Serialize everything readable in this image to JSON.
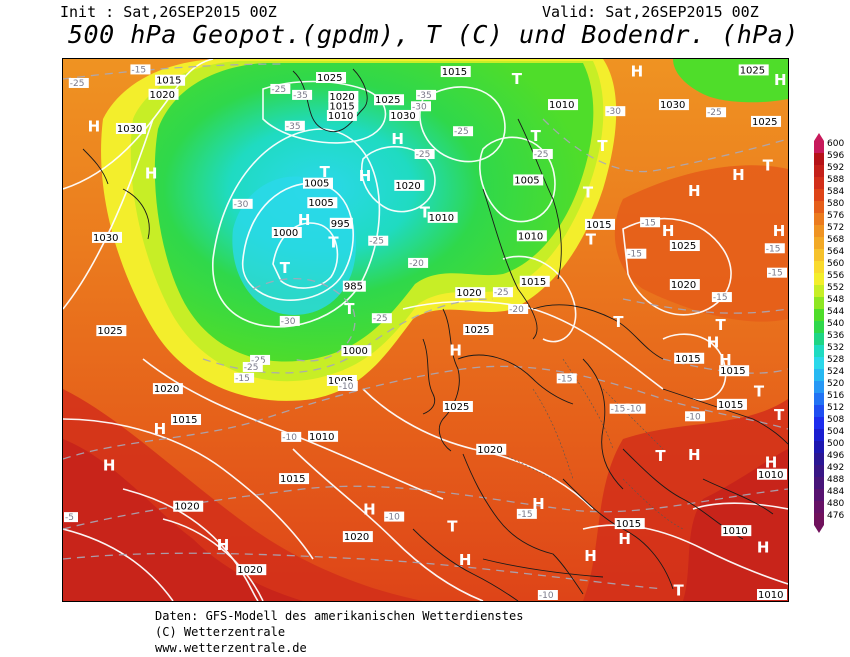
{
  "header": {
    "init": "Init : Sat,26SEP2015 00Z",
    "valid": "Valid: Sat,26SEP2015 00Z",
    "title": "500 hPa Geopot.(gpdm), T (C) und Bodendr. (hPa)"
  },
  "footer": {
    "line1": "Daten: GFS-Modell des amerikanischen Wetterdienstes",
    "line2": "(C) Wetterzentrale",
    "line3": "www.wetterzentrale.de"
  },
  "legend": {
    "levels": [
      "600",
      "596",
      "592",
      "588",
      "584",
      "580",
      "576",
      "572",
      "568",
      "564",
      "560",
      "556",
      "552",
      "548",
      "544",
      "540",
      "536",
      "532",
      "528",
      "524",
      "520",
      "516",
      "512",
      "508",
      "504",
      "500",
      "496",
      "492",
      "488",
      "484",
      "480",
      "476"
    ],
    "colors": [
      "#c71a5b",
      "#b51218",
      "#c4201a",
      "#d22f1a",
      "#de4418",
      "#e55e1a",
      "#eb7b1e",
      "#ef9322",
      "#f2a926",
      "#f6c22c",
      "#f9da2e",
      "#f3ee2c",
      "#c7ee26",
      "#8ee622",
      "#4fdd2a",
      "#2fd84b",
      "#1fd585",
      "#1fdbc1",
      "#2bd8ea",
      "#27b9f2",
      "#2798f5",
      "#2273f4",
      "#1f4ef1",
      "#1d2dee",
      "#1a1ed0",
      "#1d17b0",
      "#2a1694",
      "#381585",
      "#471479",
      "#571270",
      "#661166",
      "#70115c"
    ]
  },
  "map": {
    "pressure_labels": [
      {
        "t": "1015",
        "x": 12.7,
        "y": 2.9
      },
      {
        "t": "1020",
        "x": 11.8,
        "y": 5.5
      },
      {
        "t": "1030",
        "x": 7.3,
        "y": 11.8
      },
      {
        "t": "1025",
        "x": 34.9,
        "y": 2.4
      },
      {
        "t": "1020",
        "x": 36.6,
        "y": 5.9
      },
      {
        "t": "1015",
        "x": 36.6,
        "y": 7.7
      },
      {
        "t": "1010",
        "x": 36.4,
        "y": 9.4
      },
      {
        "t": "1025",
        "x": 42.9,
        "y": 6.5
      },
      {
        "t": "1030",
        "x": 45.0,
        "y": 9.4
      },
      {
        "t": "1015",
        "x": 52.1,
        "y": 1.3
      },
      {
        "t": "1010",
        "x": 66.9,
        "y": 7.4
      },
      {
        "t": "1030",
        "x": 82.2,
        "y": 7.4
      },
      {
        "t": "1025",
        "x": 93.2,
        "y": 1.0
      },
      {
        "t": "1025",
        "x": 94.9,
        "y": 10.5
      },
      {
        "t": "1020",
        "x": 45.7,
        "y": 22.3
      },
      {
        "t": "1005",
        "x": 33.1,
        "y": 21.9
      },
      {
        "t": "1005",
        "x": 33.7,
        "y": 25.5
      },
      {
        "t": "995",
        "x": 36.8,
        "y": 29.3
      },
      {
        "t": "1000",
        "x": 28.8,
        "y": 31.0
      },
      {
        "t": "1010",
        "x": 50.3,
        "y": 28.2
      },
      {
        "t": "1005",
        "x": 62.1,
        "y": 21.3
      },
      {
        "t": "1010",
        "x": 62.6,
        "y": 31.6
      },
      {
        "t": "1015",
        "x": 72.0,
        "y": 29.5
      },
      {
        "t": "1015",
        "x": 63.0,
        "y": 40.0
      },
      {
        "t": "1020",
        "x": 54.1,
        "y": 42.1
      },
      {
        "t": "1030",
        "x": 4.0,
        "y": 31.9
      },
      {
        "t": "1025",
        "x": 4.6,
        "y": 49.1
      },
      {
        "t": "985",
        "x": 38.6,
        "y": 40.9
      },
      {
        "t": "1000",
        "x": 38.4,
        "y": 52.8
      },
      {
        "t": "1005",
        "x": 36.4,
        "y": 58.3
      },
      {
        "t": "1025",
        "x": 55.2,
        "y": 48.9
      },
      {
        "t": "1020",
        "x": 83.7,
        "y": 40.6
      },
      {
        "t": "1025",
        "x": 83.7,
        "y": 33.4
      },
      {
        "t": "1015",
        "x": 84.3,
        "y": 54.2
      },
      {
        "t": "1015",
        "x": 90.5,
        "y": 56.5
      },
      {
        "t": "1015",
        "x": 90.2,
        "y": 62.7
      },
      {
        "t": "1020",
        "x": 12.4,
        "y": 59.8
      },
      {
        "t": "1015",
        "x": 14.9,
        "y": 65.5
      },
      {
        "t": "1010",
        "x": 33.8,
        "y": 68.6
      },
      {
        "t": "1025",
        "x": 52.4,
        "y": 63.1
      },
      {
        "t": "1020",
        "x": 57.0,
        "y": 71.0
      },
      {
        "t": "1015",
        "x": 29.8,
        "y": 76.4
      },
      {
        "t": "1020",
        "x": 15.2,
        "y": 81.5
      },
      {
        "t": "1020",
        "x": 38.6,
        "y": 87.1
      },
      {
        "t": "1020",
        "x": 23.9,
        "y": 93.2
      },
      {
        "t": "1015",
        "x": 76.1,
        "y": 84.7
      },
      {
        "t": "1010",
        "x": 90.8,
        "y": 86.0
      },
      {
        "t": "1010",
        "x": 97.0,
        "y": 75.6
      },
      {
        "t": "1010",
        "x": 98.6,
        "y": 98.0
      }
    ],
    "temp_labels": [
      {
        "t": "-15",
        "x": 9.3,
        "y": 1.0
      },
      {
        "t": "-25",
        "x": 0.8,
        "y": 3.5
      },
      {
        "t": "-25",
        "x": 28.6,
        "y": 4.6
      },
      {
        "t": "-35",
        "x": 31.6,
        "y": 5.7
      },
      {
        "t": "-35",
        "x": 48.7,
        "y": 5.7
      },
      {
        "t": "-30",
        "x": 48.0,
        "y": 7.8
      },
      {
        "t": "-35",
        "x": 30.6,
        "y": 11.4
      },
      {
        "t": "-25",
        "x": 53.8,
        "y": 12.4
      },
      {
        "t": "-25",
        "x": 48.5,
        "y": 16.6
      },
      {
        "t": "-25",
        "x": 64.8,
        "y": 16.6
      },
      {
        "t": "-30",
        "x": 23.4,
        "y": 25.8
      },
      {
        "t": "-25",
        "x": 42.1,
        "y": 32.6
      },
      {
        "t": "-20",
        "x": 47.6,
        "y": 36.7
      },
      {
        "t": "-25",
        "x": 59.3,
        "y": 42.1
      },
      {
        "t": "-20",
        "x": 61.4,
        "y": 45.2
      },
      {
        "t": "-25",
        "x": 42.6,
        "y": 46.9
      },
      {
        "t": "-30",
        "x": 29.9,
        "y": 47.4
      },
      {
        "t": "-25",
        "x": 25.8,
        "y": 54.6
      },
      {
        "t": "-25",
        "x": 24.8,
        "y": 55.9
      },
      {
        "t": "-15",
        "x": 23.6,
        "y": 57.9
      },
      {
        "t": "-10",
        "x": 37.9,
        "y": 59.4
      },
      {
        "t": "-30",
        "x": 74.8,
        "y": 8.7
      },
      {
        "t": "-25",
        "x": 88.7,
        "y": 8.9
      },
      {
        "t": "-15",
        "x": 79.6,
        "y": 29.2
      },
      {
        "t": "-15",
        "x": 77.7,
        "y": 35.0
      },
      {
        "t": "-15",
        "x": 96.8,
        "y": 34.0
      },
      {
        "t": "-15",
        "x": 98.6,
        "y": 38.5
      },
      {
        "t": "-15",
        "x": 89.5,
        "y": 43.0
      },
      {
        "t": "-15",
        "x": 68.1,
        "y": 58.0
      },
      {
        "t": "-15",
        "x": 75.4,
        "y": 63.6
      },
      {
        "t": "-10",
        "x": 77.6,
        "y": 63.6
      },
      {
        "t": "-10",
        "x": 85.8,
        "y": 65.0
      },
      {
        "t": "-10",
        "x": 30.1,
        "y": 68.8
      },
      {
        "t": "-10",
        "x": 44.3,
        "y": 83.5
      },
      {
        "t": "-15",
        "x": 62.6,
        "y": 83.0
      },
      {
        "t": "-5",
        "x": 0,
        "y": 83.6
      },
      {
        "t": "-10",
        "x": 65.5,
        "y": 99.0
      }
    ],
    "centers": [
      {
        "t": "H",
        "x": 3.4,
        "y": 10.8
      },
      {
        "t": "H",
        "x": 11.3,
        "y": 19.5
      },
      {
        "t": "H",
        "x": 32.4,
        "y": 28.0
      },
      {
        "t": "T",
        "x": 35.4,
        "y": 19.2
      },
      {
        "t": "T",
        "x": 29.9,
        "y": 36.9
      },
      {
        "t": "T",
        "x": 36.6,
        "y": 32.2
      },
      {
        "t": "H",
        "x": 40.8,
        "y": 19.9
      },
      {
        "t": "H",
        "x": 45.3,
        "y": 13.1
      },
      {
        "t": "T",
        "x": 49.2,
        "y": 26.7
      },
      {
        "t": "T",
        "x": 61.9,
        "y": 2.0
      },
      {
        "t": "T",
        "x": 64.5,
        "y": 12.5
      },
      {
        "t": "T",
        "x": 73.7,
        "y": 14.4
      },
      {
        "t": "T",
        "x": 71.7,
        "y": 23.0
      },
      {
        "t": "H",
        "x": 78.3,
        "y": 0.6
      },
      {
        "t": "H",
        "x": 98.6,
        "y": 2.2
      },
      {
        "t": "H",
        "x": 86.2,
        "y": 22.7
      },
      {
        "t": "T",
        "x": 96.5,
        "y": 18.0
      },
      {
        "t": "H",
        "x": 92.3,
        "y": 19.7
      },
      {
        "t": "H",
        "x": 97.9,
        "y": 30.1
      },
      {
        "t": "H",
        "x": 82.6,
        "y": 30.1
      },
      {
        "t": "T",
        "x": 72.1,
        "y": 31.6
      },
      {
        "t": "T",
        "x": 38.8,
        "y": 44.5
      },
      {
        "t": "H",
        "x": 53.3,
        "y": 52.1
      },
      {
        "t": "T",
        "x": 75.9,
        "y": 46.9
      },
      {
        "t": "T",
        "x": 90.0,
        "y": 47.4
      },
      {
        "t": "H",
        "x": 88.8,
        "y": 50.6
      },
      {
        "t": "H",
        "x": 90.5,
        "y": 53.9
      },
      {
        "t": "T",
        "x": 95.3,
        "y": 59.7
      },
      {
        "t": "T",
        "x": 98.6,
        "y": 64.0
      },
      {
        "t": "H",
        "x": 12.5,
        "y": 66.6
      },
      {
        "t": "H",
        "x": 5.5,
        "y": 73.3
      },
      {
        "t": "T",
        "x": 81.7,
        "y": 71.6
      },
      {
        "t": "H",
        "x": 86.2,
        "y": 71.4
      },
      {
        "t": "H",
        "x": 96.8,
        "y": 72.8
      },
      {
        "t": "H",
        "x": 64.7,
        "y": 80.4
      },
      {
        "t": "H",
        "x": 41.4,
        "y": 81.5
      },
      {
        "t": "T",
        "x": 53.0,
        "y": 84.6
      },
      {
        "t": "H",
        "x": 76.6,
        "y": 86.9
      },
      {
        "t": "H",
        "x": 21.2,
        "y": 88.0
      },
      {
        "t": "H",
        "x": 54.6,
        "y": 90.8
      },
      {
        "t": "H",
        "x": 95.7,
        "y": 88.5
      },
      {
        "t": "T",
        "x": 84.2,
        "y": 96.4
      },
      {
        "t": "H",
        "x": 71.9,
        "y": 90.0
      }
    ]
  }
}
